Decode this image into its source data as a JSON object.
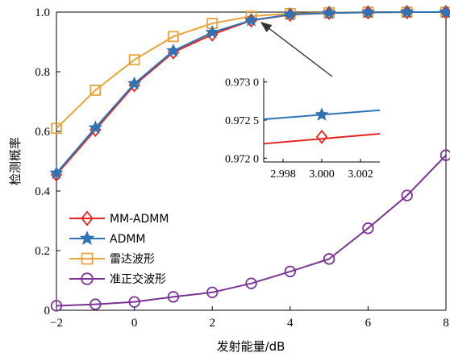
{
  "chart_data": {
    "type": "line",
    "title": "",
    "xlabel": "发射能量/dB",
    "ylabel": "检测概率",
    "x": [
      -2,
      -1,
      0,
      1,
      2,
      3,
      4,
      5,
      6,
      7,
      8
    ],
    "xlim": [
      -2,
      8
    ],
    "ylim": [
      0,
      1.0
    ],
    "x_ticks": [
      -2,
      0,
      2,
      4,
      6,
      8
    ],
    "x_tick_labels": [
      "−2",
      "0",
      "2",
      "4",
      "6",
      "8"
    ],
    "y_ticks": [
      0,
      0.2,
      0.4,
      0.6,
      0.8,
      1.0
    ],
    "y_tick_labels": [
      "0",
      "0.2",
      "0.4",
      "0.6",
      "0.8",
      "1.0"
    ],
    "grid": false,
    "legend_position": "bottom-left",
    "series": [
      {
        "name": "MM-ADMM",
        "color": "#e8231f",
        "marker": "diamond",
        "values": [
          0.455,
          0.605,
          0.755,
          0.865,
          0.925,
          0.972,
          0.991,
          0.997,
          0.999,
          1.0,
          1.0
        ]
      },
      {
        "name": "ADMM",
        "color": "#2e74b5",
        "marker": "star",
        "values": [
          0.46,
          0.612,
          0.76,
          0.87,
          0.932,
          0.9725,
          0.992,
          0.997,
          0.999,
          1.0,
          1.0
        ]
      },
      {
        "name": "雷达波形",
        "color": "#e8a33a",
        "marker": "square",
        "values": [
          0.61,
          0.738,
          0.84,
          0.918,
          0.962,
          0.986,
          0.995,
          0.998,
          1.0,
          1.0,
          1.0
        ]
      },
      {
        "name": "准正交波形",
        "color": "#7b3294",
        "marker": "circle",
        "values": [
          0.015,
          0.02,
          0.028,
          0.045,
          0.06,
          0.09,
          0.13,
          0.172,
          0.275,
          0.385,
          0.52
        ]
      }
    ],
    "inset": {
      "xlim": [
        2.997,
        3.003
      ],
      "ylim": [
        0.97195,
        0.97305
      ],
      "x_ticks": [
        2.998,
        3.0,
        3.002
      ],
      "x_tick_labels": [
        "2.998",
        "3.000",
        "3.002"
      ],
      "y_ticks": [
        0.972,
        0.9725,
        0.973
      ],
      "y_tick_labels": [
        "0.972 0",
        "0.972 5",
        "0.973 0"
      ],
      "series": [
        {
          "name": "ADMM",
          "color": "#2e74b5",
          "marker": "star",
          "line": [
            [
              2.997,
              0.97251
            ],
            [
              3.003,
              0.97263
            ]
          ],
          "marker_at": [
            3.0,
            0.97257
          ]
        },
        {
          "name": "MM-ADMM",
          "color": "#e8231f",
          "marker": "diamond",
          "line": [
            [
              2.997,
              0.97219
            ],
            [
              3.003,
              0.97232
            ]
          ],
          "marker_at": [
            3.0,
            0.97228
          ]
        }
      ]
    },
    "annotation": {
      "type": "arrow",
      "from": "inset",
      "to": [
        3.0,
        0.972
      ]
    }
  }
}
